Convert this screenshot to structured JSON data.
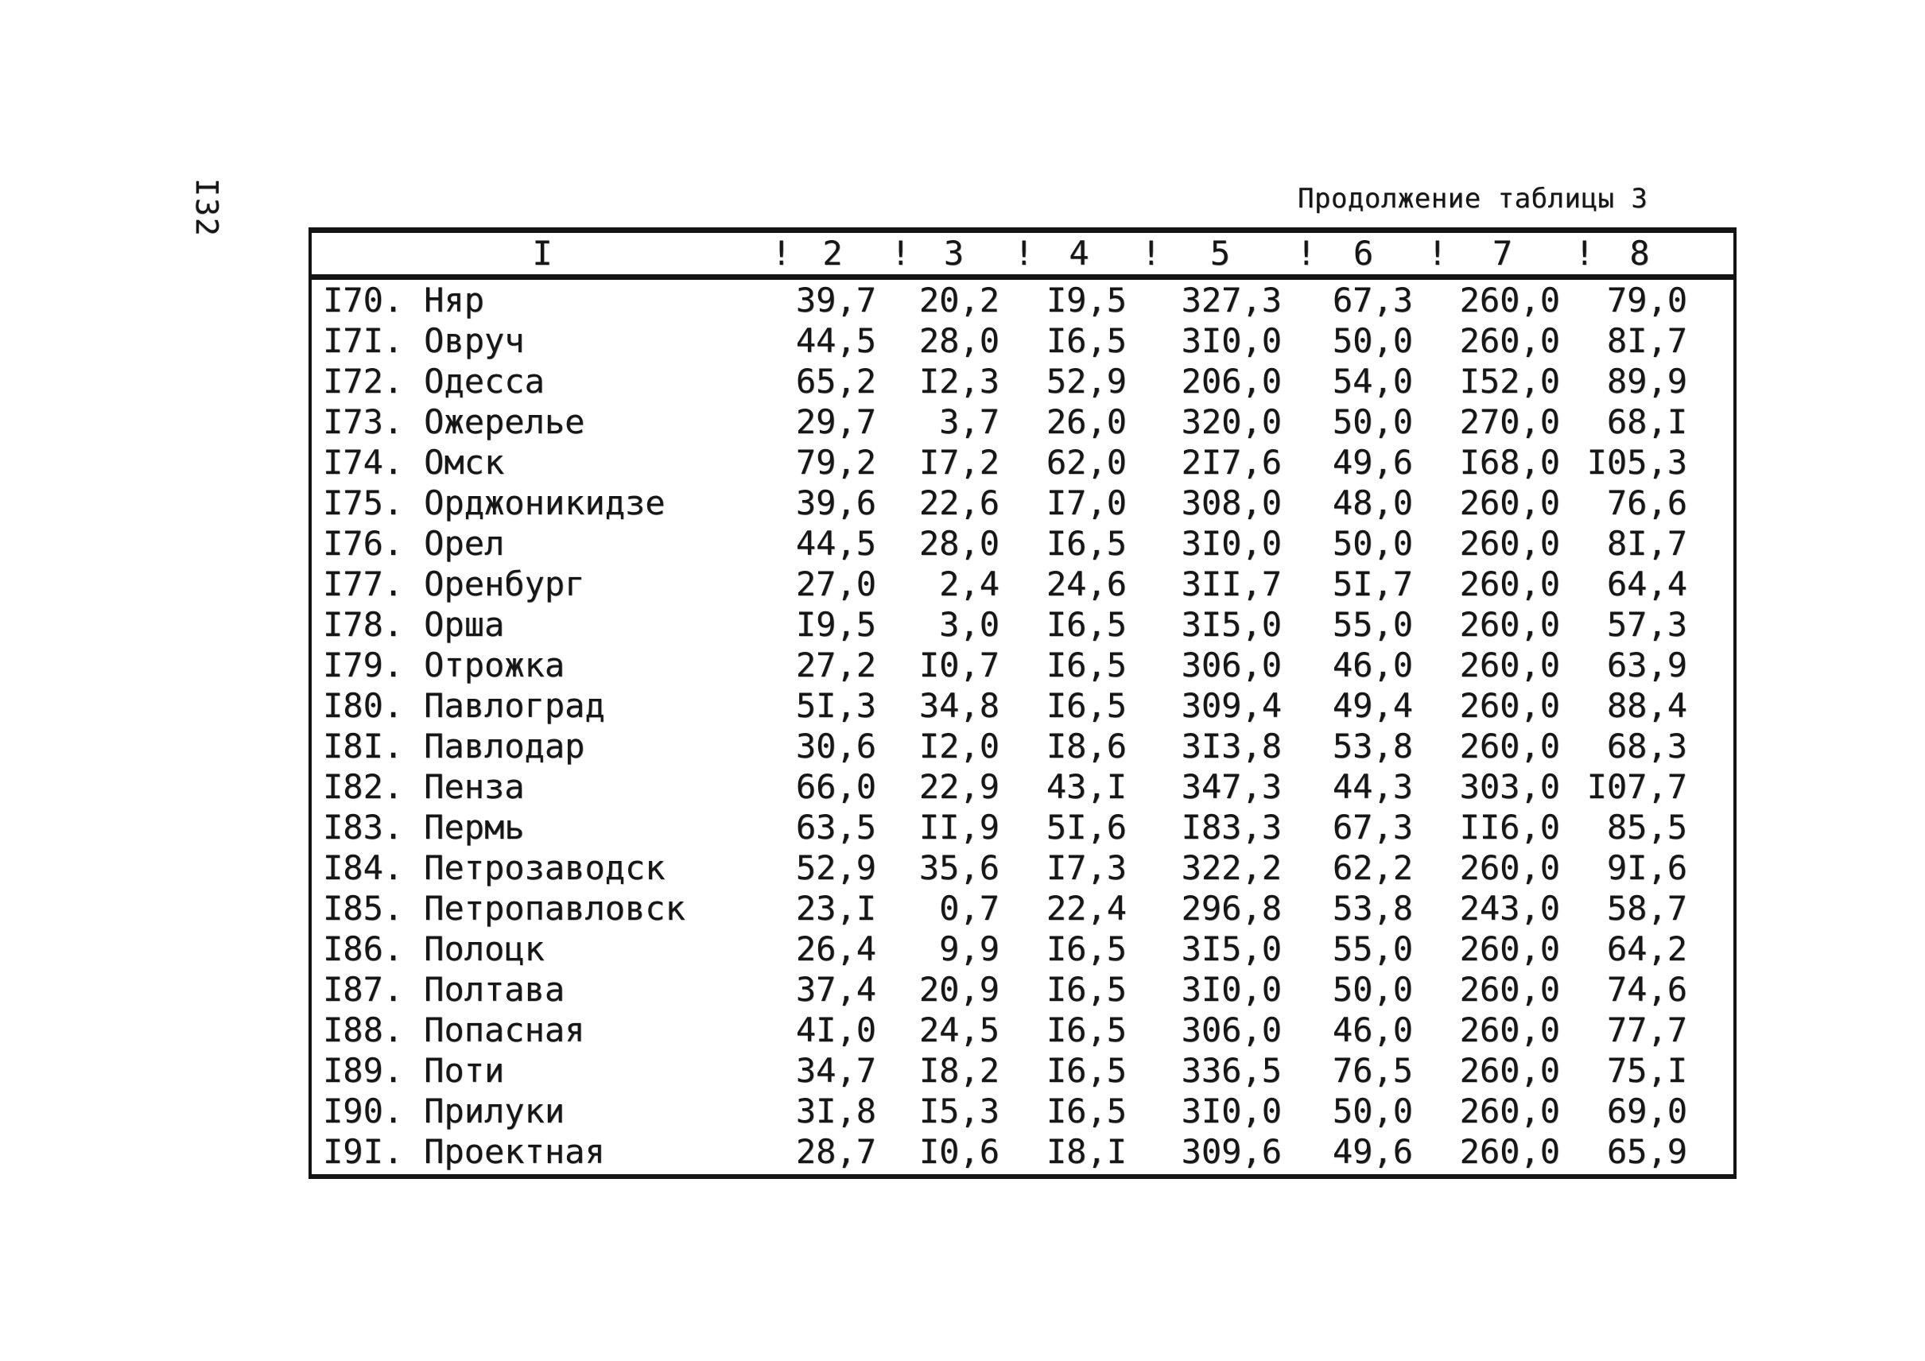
{
  "page": {
    "number": "I32"
  },
  "caption": "Продолжение таблицы 3",
  "table": {
    "col_separator": "!",
    "columns": [
      "I",
      "2",
      "3",
      "4",
      "5",
      "6",
      "7",
      "8"
    ],
    "rows": [
      {
        "num": "I70.",
        "name": "Няр",
        "values": [
          "39,7",
          "20,2",
          "I9,5",
          "327,3",
          "67,3",
          "260,0",
          "79,0"
        ]
      },
      {
        "num": "I7I.",
        "name": "Овруч",
        "values": [
          "44,5",
          "28,0",
          "I6,5",
          "3I0,0",
          "50,0",
          "260,0",
          "8I,7"
        ]
      },
      {
        "num": "I72.",
        "name": "Одесса",
        "values": [
          "65,2",
          "I2,3",
          "52,9",
          "206,0",
          "54,0",
          "I52,0",
          "89,9"
        ]
      },
      {
        "num": "I73.",
        "name": "Ожерелье",
        "values": [
          "29,7",
          "3,7",
          "26,0",
          "320,0",
          "50,0",
          "270,0",
          "68,I"
        ]
      },
      {
        "num": "I74.",
        "name": "Омск",
        "values": [
          "79,2",
          "I7,2",
          "62,0",
          "2I7,6",
          "49,6",
          "I68,0",
          "I05,3"
        ]
      },
      {
        "num": "I75.",
        "name": "Орджоникидзе",
        "values": [
          "39,6",
          "22,6",
          "I7,0",
          "308,0",
          "48,0",
          "260,0",
          "76,6"
        ]
      },
      {
        "num": "I76.",
        "name": "Орел",
        "values": [
          "44,5",
          "28,0",
          "I6,5",
          "3I0,0",
          "50,0",
          "260,0",
          "8I,7"
        ]
      },
      {
        "num": "I77.",
        "name": "Оренбург",
        "values": [
          "27,0",
          "2,4",
          "24,6",
          "3II,7",
          "5I,7",
          "260,0",
          "64,4"
        ]
      },
      {
        "num": "I78.",
        "name": "Орша",
        "values": [
          "I9,5",
          "3,0",
          "I6,5",
          "3I5,0",
          "55,0",
          "260,0",
          "57,3"
        ]
      },
      {
        "num": "I79.",
        "name": "Отрожка",
        "values": [
          "27,2",
          "I0,7",
          "I6,5",
          "306,0",
          "46,0",
          "260,0",
          "63,9"
        ]
      },
      {
        "num": "I80.",
        "name": "Павлоград",
        "values": [
          "5I,3",
          "34,8",
          "I6,5",
          "309,4",
          "49,4",
          "260,0",
          "88,4"
        ]
      },
      {
        "num": "I8I.",
        "name": "Павлодар",
        "values": [
          "30,6",
          "I2,0",
          "I8,6",
          "3I3,8",
          "53,8",
          "260,0",
          "68,3"
        ]
      },
      {
        "num": "I82.",
        "name": "Пенза",
        "values": [
          "66,0",
          "22,9",
          "43,I",
          "347,3",
          "44,3",
          "303,0",
          "I07,7"
        ]
      },
      {
        "num": "I83.",
        "name": "Пермь",
        "values": [
          "63,5",
          "II,9",
          "5I,6",
          "I83,3",
          "67,3",
          "II6,0",
          "85,5"
        ]
      },
      {
        "num": "I84.",
        "name": "Петрозаводск",
        "values": [
          "52,9",
          "35,6",
          "I7,3",
          "322,2",
          "62,2",
          "260,0",
          "9I,6"
        ]
      },
      {
        "num": "I85.",
        "name": "Петропавловск",
        "values": [
          "23,I",
          "0,7",
          "22,4",
          "296,8",
          "53,8",
          "243,0",
          "58,7"
        ]
      },
      {
        "num": "I86.",
        "name": "Полоцк",
        "values": [
          "26,4",
          "9,9",
          "I6,5",
          "3I5,0",
          "55,0",
          "260,0",
          "64,2"
        ]
      },
      {
        "num": "I87.",
        "name": "Полтава",
        "values": [
          "37,4",
          "20,9",
          "I6,5",
          "3I0,0",
          "50,0",
          "260,0",
          "74,6"
        ]
      },
      {
        "num": "I88.",
        "name": "Попасная",
        "values": [
          "4I,0",
          "24,5",
          "I6,5",
          "306,0",
          "46,0",
          "260,0",
          "77,7"
        ]
      },
      {
        "num": "I89.",
        "name": "Поти",
        "values": [
          "34,7",
          "I8,2",
          "I6,5",
          "336,5",
          "76,5",
          "260,0",
          "75,I"
        ]
      },
      {
        "num": "I90.",
        "name": "Прилуки",
        "values": [
          "3I,8",
          "I5,3",
          "I6,5",
          "3I0,0",
          "50,0",
          "260,0",
          "69,0"
        ]
      },
      {
        "num": "I9I.",
        "name": "Проектная",
        "values": [
          "28,7",
          "I0,6",
          "I8,I",
          "309,6",
          "49,6",
          "260,0",
          "65,9"
        ]
      }
    ]
  }
}
